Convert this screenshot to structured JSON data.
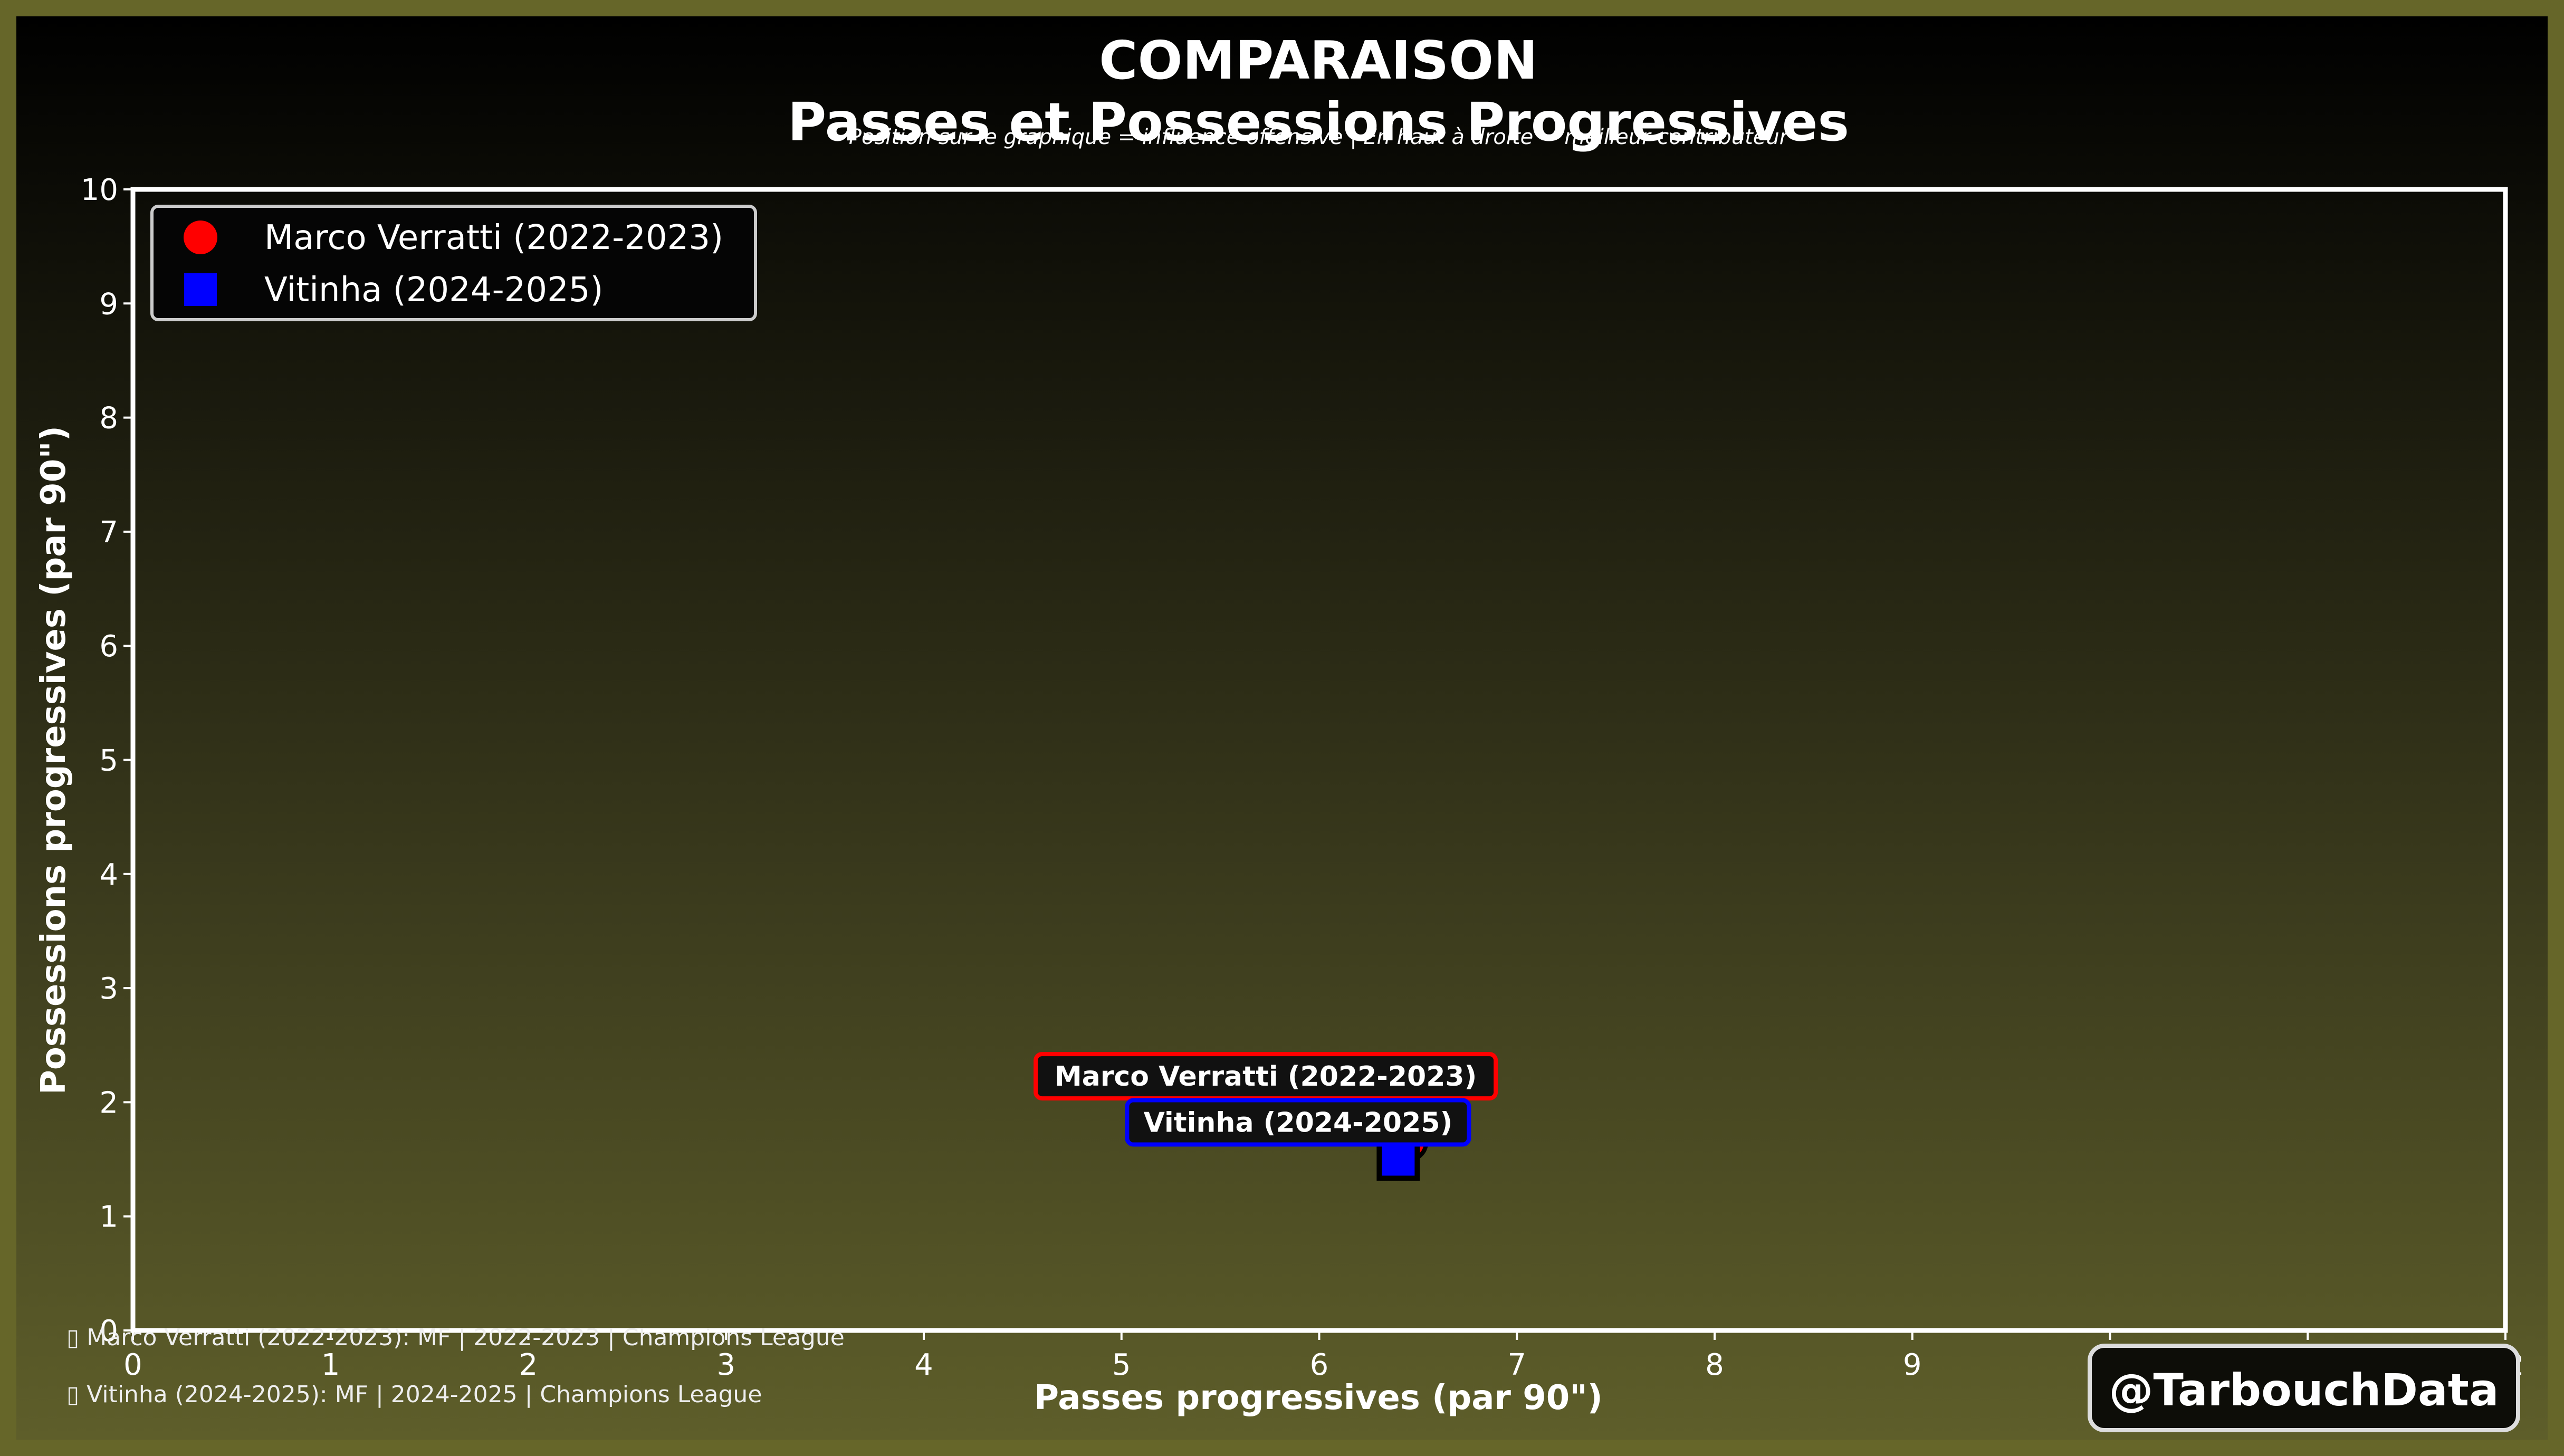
{
  "chart_data": {
    "type": "scatter",
    "title": "COMPARAISON",
    "subtitle": "Passes et Possessions Progressives",
    "caption": "Position sur le graphique = influence offensive | En haut à droite = meilleur contributeur",
    "xlabel": "Passes progressives (par 90\")",
    "ylabel": "Possessions progressives (par 90\")",
    "xlim": [
      0,
      12
    ],
    "ylim": [
      0,
      10
    ],
    "xticks": [
      "0",
      "1",
      "2",
      "3",
      "4",
      "5",
      "6",
      "7",
      "8",
      "9",
      "10",
      "11",
      "12"
    ],
    "yticks": [
      "0",
      "1",
      "2",
      "3",
      "4",
      "5",
      "6",
      "7",
      "8",
      "9",
      "10"
    ],
    "grid": false,
    "legend_position": "top-left",
    "series": [
      {
        "name": "Marco Verratti (2022-2023)",
        "marker": "circle",
        "color": "#ff0000",
        "x": 6.45,
        "y": 1.65,
        "label": "Marco Verratti (2022-2023)"
      },
      {
        "name": "Vitinha (2024-2025)",
        "marker": "square",
        "color": "#0000ff",
        "x": 6.4,
        "y": 1.5,
        "label": "Vitinha (2024-2025)"
      }
    ]
  },
  "footer": {
    "notes": [
      "Marco Verratti (2022-2023): MF | 2022-2023 | Champions League",
      "Vitinha (2024-2025): MF | 2024-2025 | Champions League"
    ],
    "watermark": "@TarbouchData"
  }
}
